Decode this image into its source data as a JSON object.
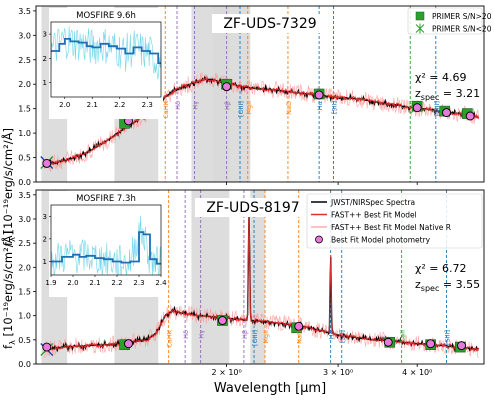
{
  "figure": {
    "xlabel": "Wavelength [µm]",
    "ylabel": "f",
    "ylabel_sub": "λ",
    "ylabel_unit": " [10⁻¹⁹erg/s/cm²/Å]",
    "x_ticks": [
      {
        "value": 2,
        "label": "2 × 10⁰"
      },
      {
        "value": 3,
        "label": "3 × 10⁰"
      },
      {
        "value": 4,
        "label": "4 × 10⁰"
      }
    ]
  },
  "chart_data": [
    {
      "type": "line",
      "title": "ZF-UDS-7329",
      "chi2_label": "χ² = 4.69",
      "z_label": "z",
      "z_sub": "spec",
      "z_value": " = 3.21",
      "ylim": [
        0,
        3.6
      ],
      "y_ticks": [
        0.0,
        0.5,
        1.0,
        1.5,
        2.0,
        2.5,
        3.0,
        3.5
      ],
      "xlim": [
        1.0,
        5.1
      ],
      "xscale": "log",
      "legend": [
        {
          "label": "PRIMER S/N>20",
          "marker": "green-square"
        },
        {
          "label": "PRIMER S/N<20",
          "marker": "green-star"
        }
      ],
      "shaded_bands": [
        [
          1.02,
          1.12
        ],
        [
          1.33,
          1.56
        ],
        [
          1.76,
          2.02
        ],
        [
          1.9,
          2.18
        ]
      ],
      "spectrum_x": [
        1.03,
        1.12,
        1.2,
        1.28,
        1.36,
        1.44,
        1.5,
        1.56,
        1.6,
        1.65,
        1.7,
        1.75,
        1.8,
        1.85,
        1.9,
        1.95,
        2.0,
        2.05,
        2.1,
        2.2,
        2.3,
        2.4,
        2.5,
        2.6,
        2.7,
        2.8,
        2.9,
        3.0,
        3.1,
        3.2,
        3.3,
        3.4,
        3.5,
        3.6,
        3.7,
        3.8,
        3.9,
        4.0,
        4.1,
        4.2,
        4.3,
        4.4,
        4.5,
        4.6,
        4.7,
        4.8,
        4.9,
        5.0
      ],
      "spectrum_y": [
        0.35,
        0.45,
        0.6,
        0.8,
        1.05,
        1.25,
        1.42,
        1.6,
        1.75,
        1.85,
        1.95,
        2.0,
        2.05,
        2.1,
        2.1,
        2.05,
        2.0,
        2.0,
        1.95,
        1.92,
        1.9,
        1.88,
        1.85,
        1.82,
        1.8,
        1.78,
        1.75,
        1.73,
        1.72,
        1.7,
        1.68,
        1.65,
        1.62,
        1.6,
        1.58,
        1.55,
        1.52,
        1.5,
        1.5,
        1.48,
        1.45,
        1.42,
        1.42,
        1.4,
        1.4,
        1.38,
        1.35,
        1.32
      ],
      "photometry": [
        {
          "x": 1.04,
          "y": 0.38
        },
        {
          "x": 1.4,
          "y": 1.25
        },
        {
          "x": 2.0,
          "y": 1.95
        },
        {
          "x": 2.8,
          "y": 1.78
        },
        {
          "x": 4.0,
          "y": 1.52
        },
        {
          "x": 4.45,
          "y": 1.42
        },
        {
          "x": 4.85,
          "y": 1.35
        }
      ],
      "primer_squares": [
        {
          "x": 1.38,
          "y": 1.2
        },
        {
          "x": 2.0,
          "y": 2.0
        },
        {
          "x": 2.8,
          "y": 1.8
        },
        {
          "x": 4.0,
          "y": 1.55
        },
        {
          "x": 4.42,
          "y": 1.45
        },
        {
          "x": 4.8,
          "y": 1.4
        }
      ],
      "primer_stars": [
        {
          "x": 1.04,
          "y": 0.4
        }
      ],
      "lines": [
        {
          "x": 1.6,
          "label": "CaHK",
          "color": "#ff7f0e"
        },
        {
          "x": 1.67,
          "label": "Hδ",
          "color": "#9467bd"
        },
        {
          "x": 1.78,
          "label": "Hγ",
          "color": "#9467bd"
        },
        {
          "x": 2.0,
          "label": "Hβ",
          "color": "#9467bd"
        },
        {
          "x": 2.1,
          "label": "[OIII]",
          "color": "#1f77b4"
        },
        {
          "x": 2.16,
          "label": "MgII",
          "color": "#ff7f0e"
        },
        {
          "x": 2.5,
          "label": "NaD",
          "color": "#ff7f0e"
        },
        {
          "x": 2.8,
          "label": "Hα",
          "color": "#1f77b4"
        },
        {
          "x": 2.95,
          "label": "[SII]",
          "color": "#1f77b4"
        },
        {
          "x": 3.9,
          "label": "CaII",
          "color": "#2ca02c"
        },
        {
          "x": 4.28,
          "label": "[SIII]",
          "color": "#1f77b4"
        }
      ],
      "inset": {
        "title": "MOSFIRE 9.6h",
        "xlim": [
          1.95,
          2.35
        ],
        "ylim": [
          0.4,
          3.5
        ],
        "x_ticks": [
          2.0,
          2.1,
          2.2,
          2.3
        ],
        "y_ticks": [
          1,
          2,
          3
        ],
        "binned_x": [
          1.95,
          1.98,
          2.0,
          2.02,
          2.05,
          2.08,
          2.1,
          2.13,
          2.16,
          2.19,
          2.22,
          2.25,
          2.28,
          2.31,
          2.34
        ],
        "binned_y": [
          2.3,
          2.6,
          2.8,
          2.7,
          2.65,
          2.5,
          2.45,
          2.6,
          2.5,
          2.4,
          2.2,
          2.45,
          2.3,
          2.2,
          1.8
        ]
      }
    },
    {
      "type": "line",
      "title": "ZF-UDS-8197",
      "chi2_label": "χ² = 6.72",
      "z_label": "z",
      "z_sub": "spec",
      "z_value": " = 3.55",
      "ylim": [
        0,
        3.6
      ],
      "y_ticks": [
        0.0,
        0.5,
        1.0,
        1.5,
        2.0,
        2.5,
        3.0,
        3.5
      ],
      "xlim": [
        1.0,
        5.1
      ],
      "xscale": "log",
      "legend": [
        {
          "label": "JWST/NIRSpec Spectra",
          "marker": "black-line"
        },
        {
          "label": "FAST++ Best Fit Model",
          "marker": "red-line"
        },
        {
          "label": "FAST++ Best Fit Model Native R",
          "marker": "pink-line"
        },
        {
          "label": "Best Fit Model photometry",
          "marker": "pink-circle"
        }
      ],
      "shaded_bands": [
        [
          1.02,
          1.12
        ],
        [
          1.33,
          1.56
        ],
        [
          1.76,
          2.02
        ],
        [
          2.18,
          2.3
        ]
      ],
      "spectrum_x": [
        1.03,
        1.1,
        1.2,
        1.3,
        1.4,
        1.5,
        1.55,
        1.6,
        1.65,
        1.7,
        1.8,
        1.9,
        2.0,
        2.1,
        2.2,
        2.3,
        2.4,
        2.5,
        2.6,
        2.7,
        2.8,
        2.9,
        3.0,
        3.2,
        3.4,
        3.6,
        3.8,
        4.0,
        4.2,
        4.4,
        4.6,
        4.8,
        5.0
      ],
      "spectrum_y": [
        0.3,
        0.35,
        0.38,
        0.4,
        0.45,
        0.5,
        0.65,
        1.0,
        1.1,
        1.05,
        1.0,
        0.98,
        0.95,
        0.92,
        0.9,
        0.88,
        0.85,
        0.82,
        0.8,
        0.75,
        0.7,
        0.65,
        0.6,
        0.55,
        0.5,
        0.48,
        0.45,
        0.42,
        0.4,
        0.38,
        0.35,
        0.33,
        0.3
      ],
      "emission_lines": [
        {
          "x": 2.17,
          "y": 3.2
        },
        {
          "x": 2.92,
          "y": 2.6
        }
      ],
      "photometry": [
        {
          "x": 1.04,
          "y": 0.35
        },
        {
          "x": 1.4,
          "y": 0.42
        },
        {
          "x": 1.97,
          "y": 0.9
        },
        {
          "x": 2.6,
          "y": 0.78
        },
        {
          "x": 3.6,
          "y": 0.45
        },
        {
          "x": 4.2,
          "y": 0.42
        },
        {
          "x": 4.7,
          "y": 0.38
        }
      ],
      "primer_squares": [
        {
          "x": 1.38,
          "y": 0.4
        },
        {
          "x": 1.97,
          "y": 0.9
        },
        {
          "x": 2.58,
          "y": 0.75
        },
        {
          "x": 3.62,
          "y": 0.45
        },
        {
          "x": 4.2,
          "y": 0.4
        },
        {
          "x": 4.68,
          "y": 0.35
        }
      ],
      "primer_stars": [
        {
          "x": 1.04,
          "y": 0.3
        }
      ],
      "lines": [
        {
          "x": 1.62,
          "label": "CaHK",
          "color": "#ff7f0e"
        },
        {
          "x": 1.72,
          "label": "Hδ",
          "color": "#9467bd"
        },
        {
          "x": 1.82,
          "label": "Hγ",
          "color": "#9467bd"
        },
        {
          "x": 2.13,
          "label": "Hβ",
          "color": "#9467bd"
        },
        {
          "x": 2.21,
          "label": "[OIII]",
          "color": "#1f77b4"
        },
        {
          "x": 2.3,
          "label": "MgII",
          "color": "#ff7f0e"
        },
        {
          "x": 2.6,
          "label": "NaD",
          "color": "#ff7f0e"
        },
        {
          "x": 2.92,
          "label": "Hα",
          "color": "#1f77b4"
        },
        {
          "x": 3.04,
          "label": "[SII]",
          "color": "#1f77b4"
        },
        {
          "x": 3.78,
          "label": "CaII",
          "color": "#2ca02c"
        },
        {
          "x": 4.45,
          "label": "[SIII]",
          "color": "#1f77b4"
        }
      ],
      "inset": {
        "title": "MOSFIRE 7.3h",
        "xlim": [
          1.9,
          2.4
        ],
        "ylim": [
          0.4,
          3.5
        ],
        "x_ticks": [
          1.9,
          2.0,
          2.1,
          2.2,
          2.3,
          2.4
        ],
        "y_ticks": [
          1,
          2,
          3
        ],
        "binned_x": [
          1.9,
          1.95,
          2.0,
          2.03,
          2.06,
          2.1,
          2.14,
          2.18,
          2.22,
          2.26,
          2.3,
          2.32,
          2.35,
          2.38
        ],
        "binned_y": [
          1.0,
          1.2,
          1.3,
          1.2,
          1.25,
          1.15,
          1.1,
          1.0,
          0.95,
          1.0,
          2.3,
          2.2,
          1.1,
          0.9
        ]
      }
    }
  ],
  "colors": {
    "spectrum": "#000000",
    "model": "#e03030",
    "native": "#ff9a9a",
    "photometry": "#e67adb",
    "primer": "#2ca02c",
    "inset_raw": "#70d6e8",
    "inset_binned": "#1f6fb4",
    "shade": "#d9d9d9"
  }
}
